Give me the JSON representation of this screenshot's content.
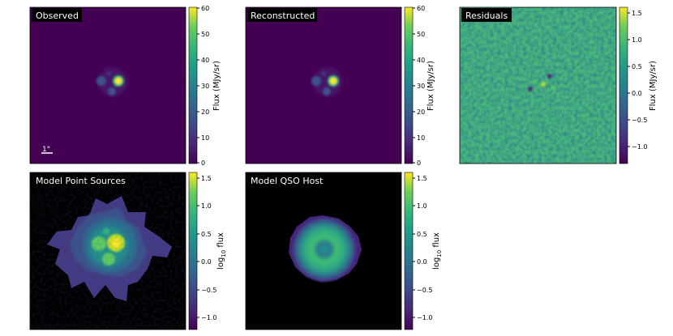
{
  "chart_data": [
    {
      "type": "heatmap",
      "title": "Observed",
      "colormap": "viridis",
      "colorbar": {
        "label": "Flux (MJy/sr)",
        "range": [
          0,
          60
        ],
        "ticks": [
          "0",
          "10",
          "20",
          "30",
          "40",
          "50",
          "60"
        ]
      },
      "scale_bar_label": "1\"",
      "content": "compact quasar with bright core and companion blobs on dark background"
    },
    {
      "type": "heatmap",
      "title": "Reconstructed",
      "colormap": "viridis",
      "colorbar": {
        "label": "Flux (MJy/sr)",
        "range": [
          0,
          60
        ],
        "ticks": [
          "0",
          "10",
          "20",
          "30",
          "40",
          "50",
          "60"
        ]
      }
    },
    {
      "type": "heatmap",
      "title": "Residuals",
      "colormap": "viridis",
      "colorbar": {
        "label": "Flux (MJy/sr)",
        "range": [
          -1.4,
          1.6
        ],
        "ticks": [
          "1.5",
          "1.0",
          "0.5",
          "0.0",
          "−0.5",
          "−1.0"
        ]
      }
    },
    {
      "type": "heatmap",
      "title": "Model Point Sources",
      "colormap": "viridis",
      "colorbar": {
        "label_parts": [
          "log",
          "10",
          " flux"
        ],
        "range": [
          -1.3,
          1.6
        ],
        "ticks": [
          "1.5",
          "1.0",
          "0.5",
          "0.0",
          "−0.5",
          "−1.0"
        ]
      }
    },
    {
      "type": "heatmap",
      "title": "Model QSO Host",
      "colormap": "viridis",
      "colorbar": {
        "label_parts": [
          "log",
          "10",
          " flux"
        ],
        "range": [
          -1.3,
          1.6
        ],
        "ticks": [
          "1.5",
          "1.0",
          "0.5",
          "0.0",
          "−0.5",
          "−1.0"
        ]
      }
    }
  ]
}
